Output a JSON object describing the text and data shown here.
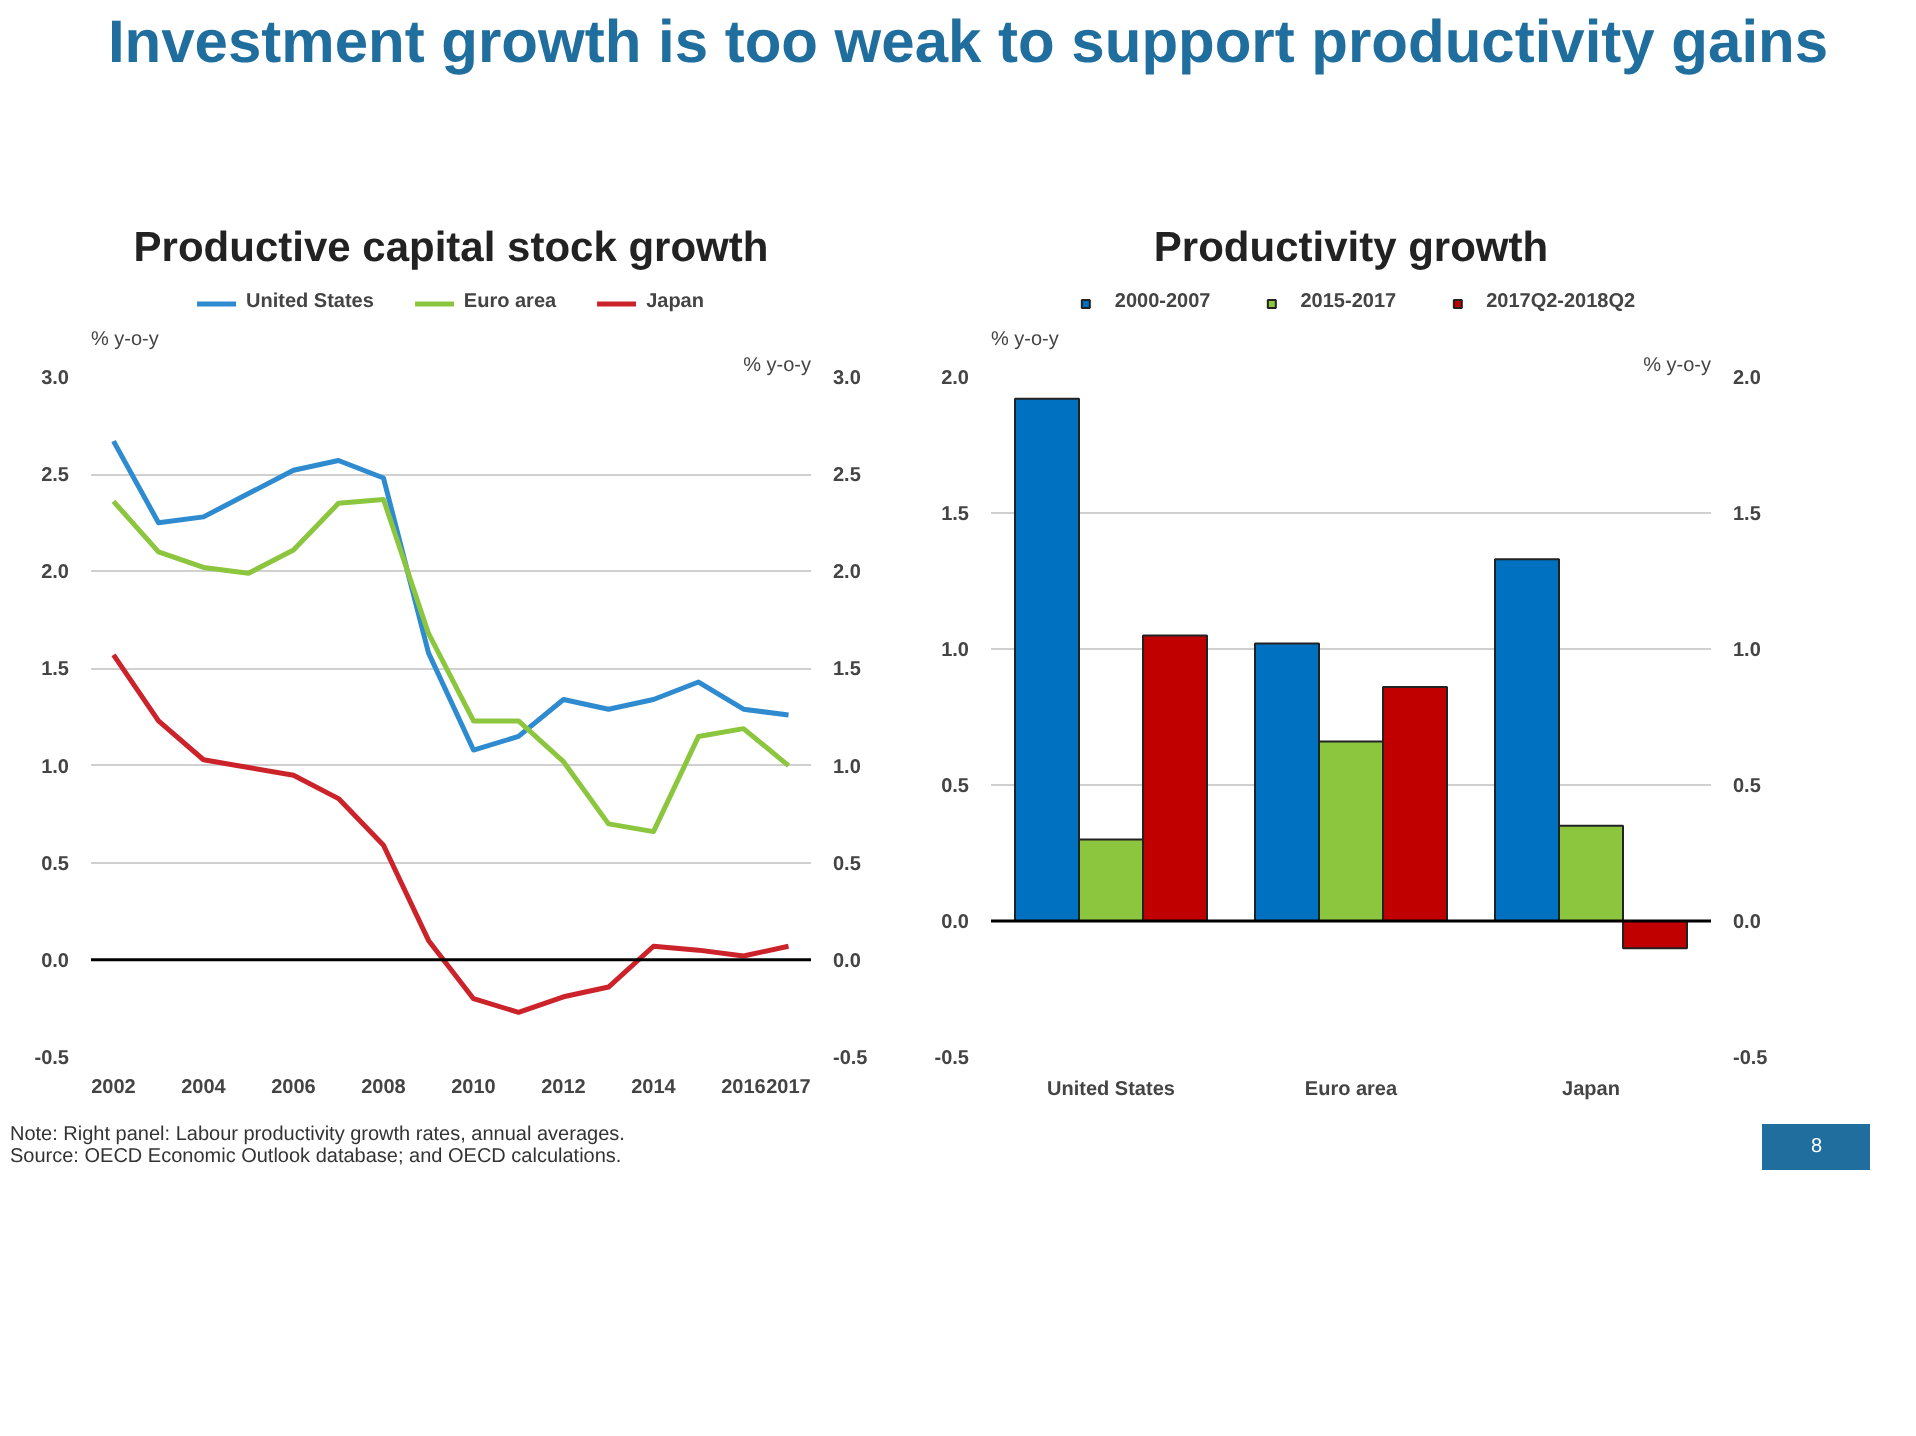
{
  "chart_data": [
    {
      "type": "line",
      "title": "Productive capital stock growth",
      "ylabel": "% y-o-y",
      "y2label": "% y-o-y",
      "annotations": [
        "Investment growth is too weak to support productivity gains"
      ],
      "x": [
        2002,
        2003,
        2004,
        2005,
        2006,
        2007,
        2008,
        2009,
        2010,
        2011,
        2012,
        2013,
        2014,
        2015,
        2016,
        2017
      ],
      "series": [
        {
          "name": "United States",
          "color": "#2e8bd0",
          "values": [
            2.67,
            2.25,
            2.28,
            2.4,
            2.52,
            2.57,
            2.48,
            1.58,
            1.08,
            1.15,
            1.34,
            1.29,
            1.34,
            1.43,
            1.29,
            1.26
          ]
        },
        {
          "name": "Euro area",
          "color": "#8cc63f",
          "values": [
            2.36,
            2.1,
            2.02,
            1.99,
            2.11,
            2.35,
            2.37,
            1.68,
            1.23,
            1.23,
            1.02,
            0.7,
            0.66,
            1.15,
            1.19,
            1.0
          ]
        },
        {
          "name": "Japan",
          "color": "#cc2229",
          "values": [
            1.57,
            1.23,
            1.03,
            0.99,
            0.95,
            0.83,
            0.59,
            0.1,
            -0.2,
            -0.27,
            -0.19,
            -0.14,
            0.07,
            0.05,
            0.02,
            0.07
          ]
        }
      ],
      "xlim": [
        2001.5,
        2017.5
      ],
      "xticks": [
        2002,
        2004,
        2006,
        2008,
        2010,
        2012,
        2014,
        2016,
        2017
      ],
      "ylim": [
        -0.5,
        3.0
      ],
      "yticks": [
        {
          "value": -0.5,
          "label": "-0.5"
        },
        {
          "value": 0,
          "label": "0.0"
        },
        0.5,
        {
          "value": 1,
          "label": "1.0"
        },
        1.5,
        {
          "value": 2,
          "label": "2.0"
        },
        2.5,
        {
          "value": 3,
          "label": "3.0"
        }
      ],
      "y2lim": [
        -0.5,
        3.0
      ],
      "y2ticks": [
        {
          "value": -0.5,
          "label": "-0.5"
        },
        {
          "value": 0,
          "label": "0.0"
        },
        0.5,
        {
          "value": 1,
          "label": "1.0"
        },
        1.5,
        {
          "value": 2,
          "label": "2.0"
        },
        2.5,
        {
          "value": 3,
          "label": "3.0"
        }
      ],
      "ref_lines": [
        {
          "axis": "y",
          "value": 0,
          "color": "#000000"
        }
      ],
      "grid": "y",
      "legend": "top"
    },
    {
      "type": "bar",
      "title": "Productivity growth",
      "ylabel": "% y-o-y",
      "y2label": "% y-o-y",
      "annotations": [
        "Note: Right panel: Labour productivity growth rates, annual averages.",
        "Source: OECD Economic Outlook database; and OECD calculations.",
        "8"
      ],
      "categories": [
        "United States",
        "Euro area",
        "Japan"
      ],
      "series": [
        {
          "name": "2000-2007",
          "color": "#0070c0",
          "values": [
            1.92,
            1.02,
            1.33
          ]
        },
        {
          "name": "2015-2017",
          "color": "#8cc63f",
          "values": [
            0.3,
            0.66,
            0.35
          ]
        },
        {
          "name": "2017Q2-2018Q2",
          "color": "#c00000",
          "values": [
            1.05,
            0.86,
            -0.1
          ]
        }
      ],
      "ylim": [
        -0.5,
        2.0
      ],
      "yticks": [
        {
          "value": -0.5,
          "label": "-0.5"
        },
        {
          "value": 0,
          "label": "0.0"
        },
        0.5,
        {
          "value": 1,
          "label": "1.0"
        },
        1.5,
        {
          "value": 2,
          "label": "2.0"
        }
      ],
      "y2lim": [
        -0.5,
        2.0
      ],
      "y2ticks": [
        {
          "value": -0.5,
          "label": "-0.5"
        },
        {
          "value": 0,
          "label": "0.0"
        },
        0.5,
        {
          "value": 1,
          "label": "1.0"
        },
        1.5,
        {
          "value": 2,
          "label": "2.0"
        }
      ],
      "ref_lines": [
        {
          "axis": "y",
          "value": 0,
          "color": "#000000"
        }
      ],
      "grid": "y",
      "legend": "top"
    }
  ]
}
